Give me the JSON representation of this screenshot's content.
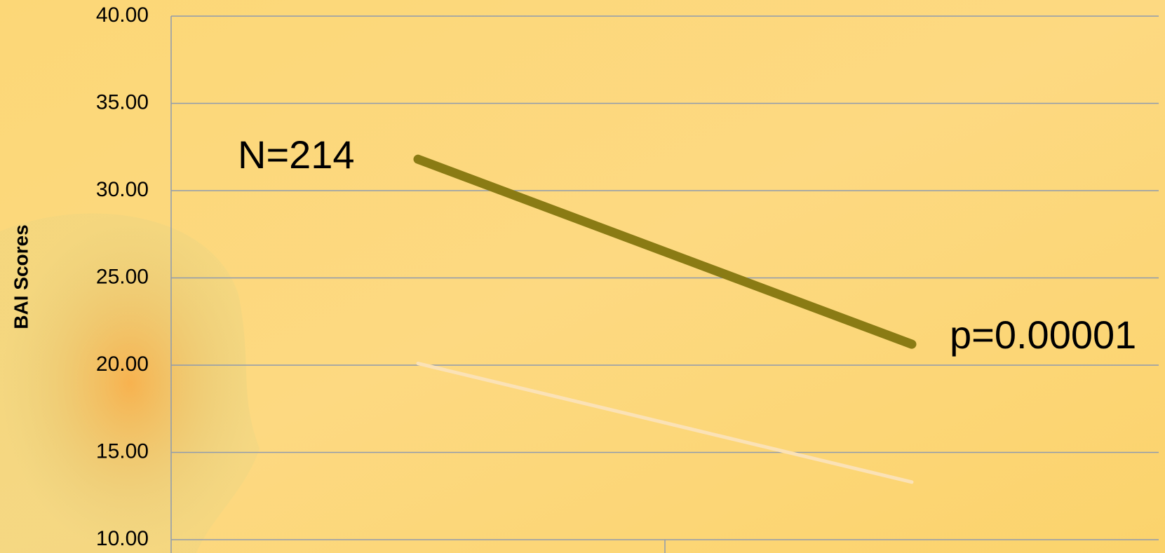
{
  "chart_data": {
    "type": "line",
    "y_label": "BAI Scores",
    "categories": [
      null,
      null
    ],
    "series": [
      {
        "color": "#8a7b14",
        "values": [
          31.8,
          21.2
        ]
      },
      {
        "color": "#fbe2b6",
        "values": [
          20.1,
          13.3
        ]
      }
    ],
    "annotations": [
      "N=214",
      "p=0.00001"
    ],
    "ylim": [
      10,
      40
    ],
    "yticks": [
      {
        "value": 10,
        "label": "10.00"
      },
      {
        "value": 15,
        "label": "15.00"
      },
      {
        "value": 20,
        "label": "20.00"
      },
      {
        "value": 25,
        "label": "25.00"
      },
      {
        "value": 30,
        "label": "30.00"
      },
      {
        "value": 35,
        "label": "35.00"
      },
      {
        "value": 40,
        "label": "40.00"
      }
    ],
    "grid": true
  }
}
